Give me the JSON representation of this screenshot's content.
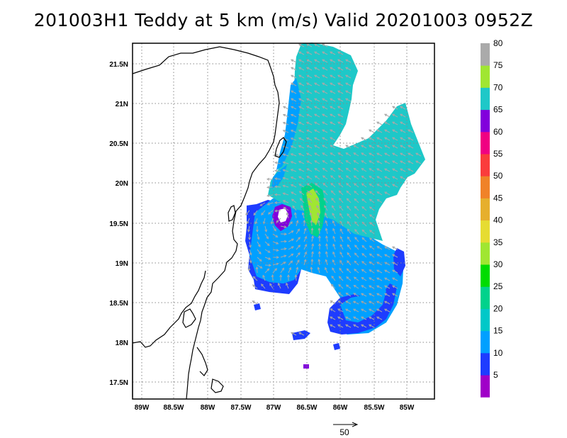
{
  "title": "201003H1 Teddy at 5 km (m/s) Valid 20201003 0952Z",
  "lat_labels": [
    "21.5N",
    "21N",
    "20.5N",
    "20N",
    "19.5N",
    "19N",
    "18.5N",
    "18N",
    "17.5N"
  ],
  "lon_labels": [
    "89W",
    "88.5W",
    "88W",
    "87.5W",
    "87W",
    "86.5W",
    "86W",
    "85.5W",
    "85W"
  ],
  "colorbar": {
    "labels": [
      "5",
      "10",
      "15",
      "20",
      "25",
      "30",
      "35",
      "40",
      "45",
      "50",
      "55",
      "60",
      "65",
      "70",
      "75",
      "80"
    ],
    "colors": [
      "#a000c8",
      "#1e3cff",
      "#00a0ff",
      "#00c8c8",
      "#00d28c",
      "#00dc00",
      "#a0e632",
      "#e6dc32",
      "#e6af2d",
      "#f08228",
      "#fa3c3c",
      "#f00082",
      "#8200dc",
      "#1ec8c8",
      "#a0e632",
      "#aaaaaa"
    ]
  },
  "vector_scale_label": "50",
  "colors": {
    "coast": "#000000",
    "grid": "#888888",
    "arrow": "#a8a8a8"
  }
}
